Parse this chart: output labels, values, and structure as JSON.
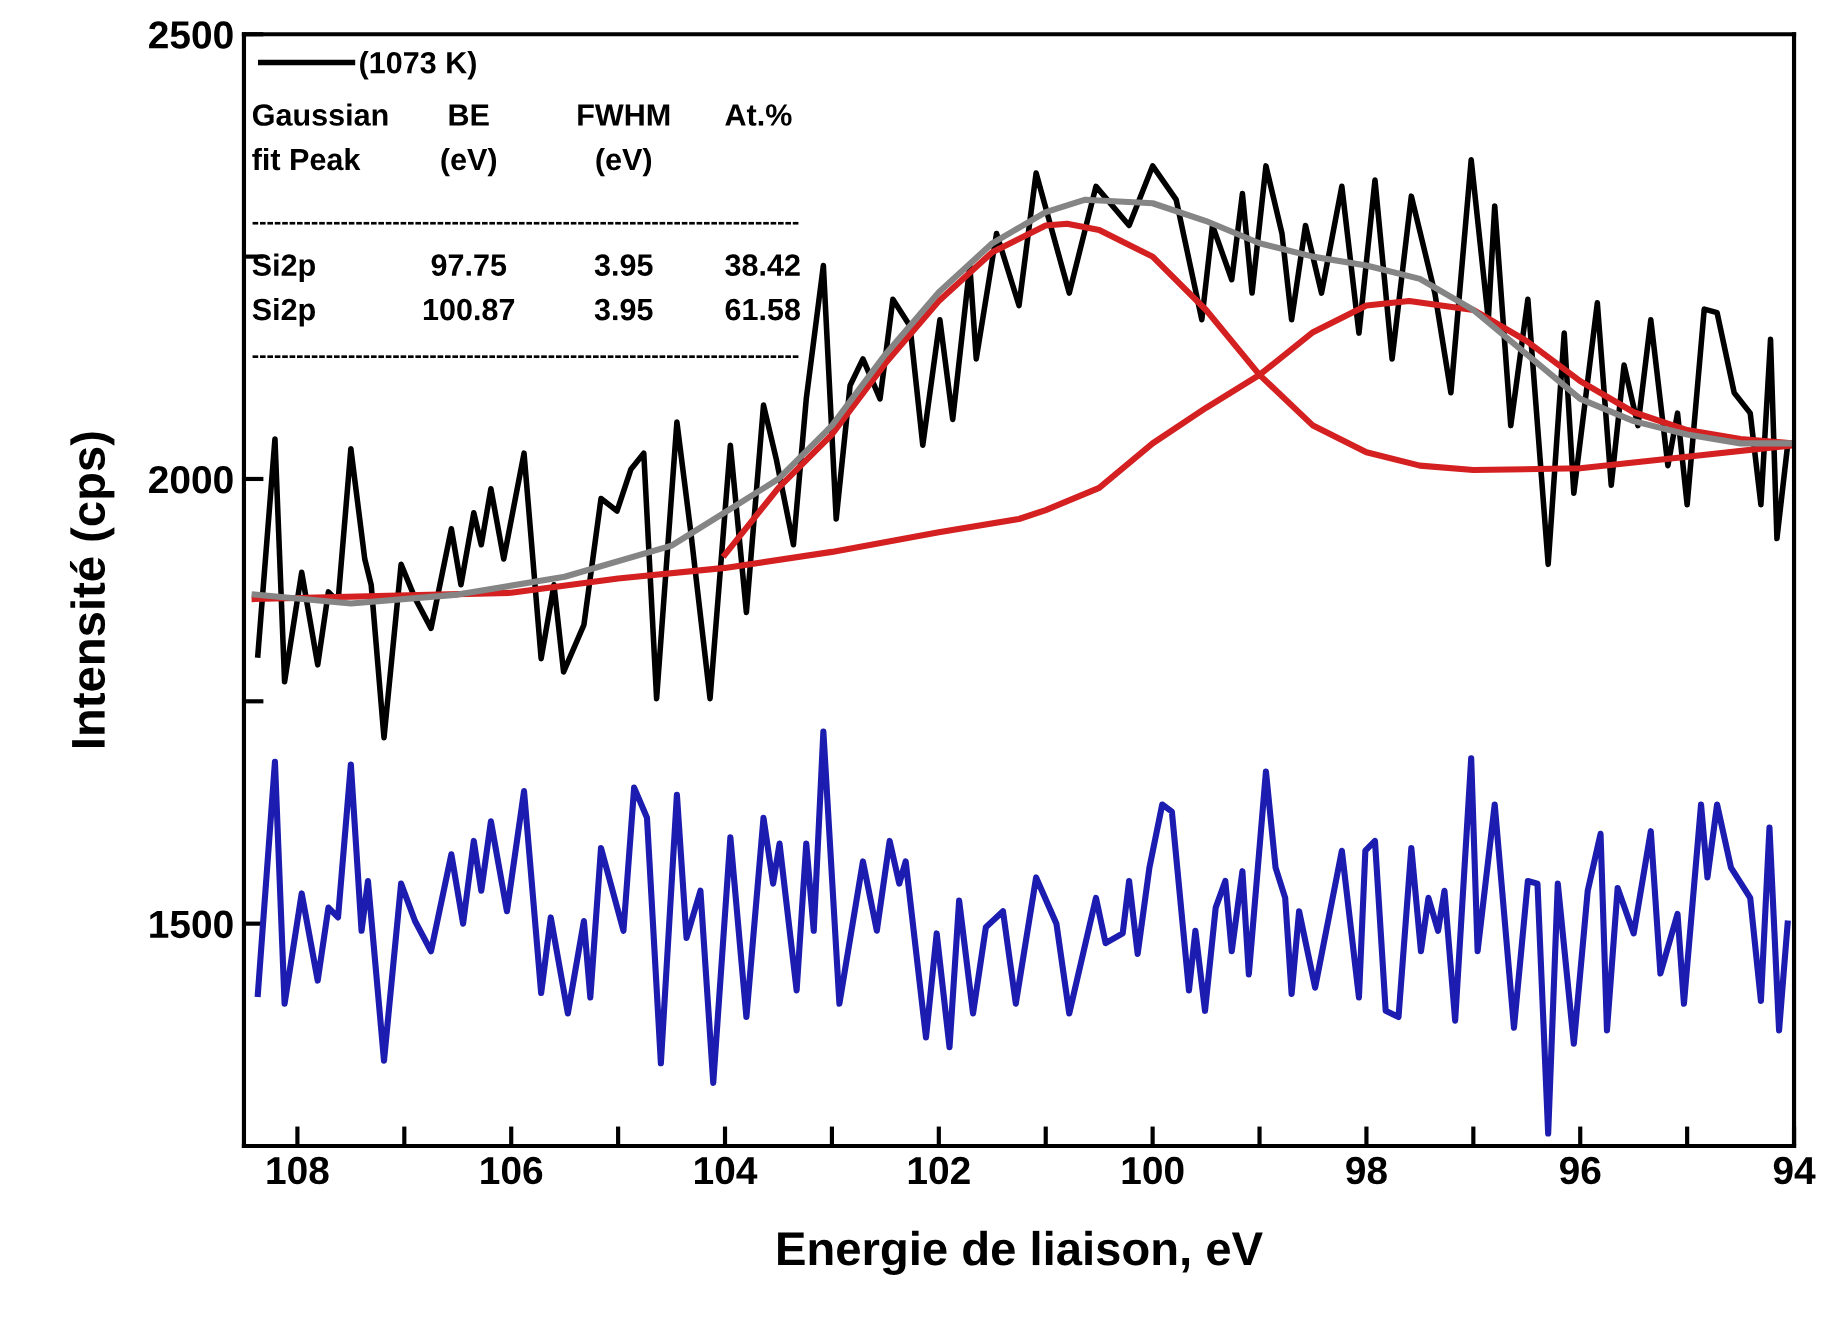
{
  "chart_data": {
    "type": "line",
    "xlabel": "Energie de liaison, eV",
    "ylabel": "Intensité (cps)",
    "xlim": [
      108.5,
      94
    ],
    "ylim": [
      1250,
      2500
    ],
    "xticks": [
      108,
      {
        "value": 107,
        "label": null
      },
      106,
      {
        "value": 105,
        "label": null
      },
      104,
      {
        "value": 103,
        "label": null
      },
      102,
      {
        "value": 101,
        "label": null
      },
      100,
      {
        "value": 99,
        "label": null
      },
      98,
      {
        "value": 97,
        "label": null
      },
      96,
      {
        "value": 95,
        "label": null
      },
      94
    ],
    "yticks": [
      1500,
      {
        "value": 1750,
        "label": null
      },
      2000,
      {
        "value": 2250,
        "label": null
      },
      2500
    ],
    "grid": false,
    "legend": "top left",
    "marker": "none",
    "line_style": "solid",
    "annotations": [
      "Gaussian",
      "BE",
      "FWHM",
      "At.%",
      "fit Peak",
      "(eV)",
      "(eV)",
      "--------------------------------------------------------------------------",
      "Si2p",
      "97.75",
      "3.95",
      "38.42",
      "Si2p",
      "100.87",
      "3.95",
      "61.58",
      "--------------------------------------------------------------------------"
    ],
    "series": [
      {
        "name": "(1073 K)",
        "color": "#000000",
        "x": [
          108.37,
          108.21,
          108.12,
          107.96,
          107.81,
          107.71,
          107.62,
          107.5,
          107.37,
          107.31,
          107.19,
          107.03,
          106.9,
          106.75,
          106.56,
          106.47,
          106.35,
          106.28,
          106.19,
          106.07,
          105.88,
          105.72,
          105.6,
          105.51,
          105.32,
          105.16,
          105.01,
          104.88,
          104.76,
          104.64,
          104.45,
          104.32,
          104.14,
          103.95,
          103.8,
          103.64,
          103.52,
          103.36,
          103.24,
          103.08,
          102.96,
          102.83,
          102.71,
          102.55,
          102.43,
          102.27,
          102.15,
          101.99,
          101.87,
          101.71,
          101.65,
          101.46,
          101.25,
          101.09,
          100.78,
          100.53,
          100.22,
          100.0,
          99.78,
          99.54,
          99.44,
          99.26,
          99.16,
          99.07,
          98.94,
          98.79,
          98.7,
          98.57,
          98.42,
          98.23,
          98.07,
          97.92,
          97.76,
          97.58,
          97.36,
          97.21,
          97.02,
          96.86,
          96.8,
          96.65,
          96.49,
          96.3,
          96.15,
          96.06,
          95.84,
          95.71,
          95.59,
          95.46,
          95.34,
          95.18,
          95.09,
          95.0,
          94.84,
          94.72,
          94.56,
          94.41,
          94.31,
          94.22,
          94.16,
          94.06
        ],
        "values": [
          1802,
          2045,
          1772,
          1895,
          1791,
          1873,
          1862,
          2034,
          1910,
          1881,
          1709,
          1904,
          1866,
          1832,
          1944,
          1881,
          1962,
          1926,
          1989,
          1910,
          2029,
          1798,
          1881,
          1783,
          1836,
          1978,
          1964,
          2011,
          2029,
          1753,
          2064,
          1940,
          1753,
          2038,
          1850,
          2083,
          2022,
          1926,
          2090,
          2240,
          1955,
          2105,
          2135,
          2090,
          2202,
          2172,
          2038,
          2179,
          2067,
          2240,
          2135,
          2276,
          2195,
          2344,
          2209,
          2329,
          2285,
          2352,
          2314,
          2179,
          2285,
          2224,
          2321,
          2209,
          2352,
          2276,
          2179,
          2285,
          2209,
          2329,
          2164,
          2336,
          2135,
          2318,
          2209,
          2097,
          2359,
          2179,
          2307,
          2060,
          2202,
          1904,
          2164,
          1984,
          2198,
          1993,
          2128,
          2060,
          2179,
          2015,
          2074,
          1971,
          2191,
          2187,
          2097,
          2074,
          1971,
          2157,
          1933,
          2038
        ]
      },
      {
        "color": "#d42020",
        "x": [
          104,
          103.5,
          103,
          102.5,
          102,
          101.5,
          101,
          100.8,
          100.5,
          100,
          99.5,
          99,
          98.5,
          98,
          97.5,
          97,
          96,
          95,
          94
        ],
        "values": [
          1915,
          1990,
          2050,
          2130,
          2200,
          2255,
          2285,
          2287,
          2280,
          2250,
          2190,
          2117,
          2060,
          2030,
          2015,
          2010,
          2012,
          2025,
          2038
        ]
      },
      {
        "color": "#d42020",
        "x": [
          108.4,
          106,
          105,
          104,
          103,
          102,
          101.25,
          101,
          100.5,
          100,
          99.5,
          99,
          98.5,
          98,
          97.6,
          97,
          96.5,
          96,
          95.5,
          95,
          94.5,
          94
        ],
        "values": [
          1865,
          1872,
          1888,
          1900,
          1918,
          1940,
          1955,
          1965,
          1990,
          2040,
          2080,
          2117,
          2165,
          2195,
          2200,
          2190,
          2155,
          2110,
          2075,
          2055,
          2045,
          2040
        ]
      },
      {
        "color": "#858585",
        "x": [
          108.4,
          107.5,
          106.5,
          105.5,
          104.5,
          103.5,
          103,
          102.5,
          102,
          101.5,
          101,
          100.63,
          100,
          99.5,
          99,
          98.5,
          98,
          97.5,
          97,
          96.5,
          96,
          95.5,
          95,
          94.5,
          94
        ],
        "values": [
          1870,
          1860,
          1870,
          1890,
          1925,
          2000,
          2060,
          2140,
          2210,
          2265,
          2300,
          2314,
          2310,
          2290,
          2265,
          2250,
          2240,
          2225,
          2190,
          2140,
          2090,
          2065,
          2050,
          2040,
          2040
        ]
      },
      {
        "color": "#1c1cb0",
        "x": [
          108.37,
          108.21,
          108.12,
          107.96,
          107.81,
          107.71,
          107.62,
          107.5,
          107.4,
          107.34,
          107.19,
          107.03,
          106.9,
          106.75,
          106.56,
          106.45,
          106.35,
          106.28,
          106.19,
          106.04,
          105.88,
          105.72,
          105.63,
          105.47,
          105.32,
          105.26,
          105.16,
          104.95,
          104.85,
          104.73,
          104.6,
          104.45,
          104.36,
          104.23,
          104.11,
          103.95,
          103.8,
          103.64,
          103.55,
          103.49,
          103.33,
          103.24,
          103.17,
          103.08,
          102.93,
          102.71,
          102.58,
          102.46,
          102.37,
          102.31,
          102.12,
          102.02,
          101.9,
          101.81,
          101.68,
          101.56,
          101.4,
          101.28,
          101.09,
          100.9,
          100.78,
          100.53,
          100.44,
          100.28,
          100.22,
          100.14,
          100.03,
          99.91,
          99.82,
          99.66,
          99.6,
          99.51,
          99.41,
          99.32,
          99.26,
          99.16,
          99.1,
          98.94,
          98.85,
          98.76,
          98.7,
          98.63,
          98.48,
          98.23,
          98.07,
          98.01,
          97.92,
          97.82,
          97.7,
          97.58,
          97.49,
          97.42,
          97.33,
          97.27,
          97.17,
          97.02,
          96.96,
          96.8,
          96.62,
          96.49,
          96.4,
          96.3,
          96.21,
          96.06,
          95.93,
          95.81,
          95.75,
          95.65,
          95.5,
          95.34,
          95.25,
          95.09,
          95.03,
          94.87,
          94.81,
          94.72,
          94.59,
          94.41,
          94.31,
          94.23,
          94.14,
          94.06
        ],
        "values": [
          1421,
          1682,
          1410,
          1534,
          1436,
          1518,
          1507,
          1679,
          1492,
          1548,
          1346,
          1545,
          1503,
          1469,
          1578,
          1500,
          1593,
          1537,
          1615,
          1514,
          1649,
          1422,
          1507,
          1399,
          1503,
          1417,
          1585,
          1492,
          1653,
          1619,
          1343,
          1645,
          1484,
          1537,
          1321,
          1597,
          1395,
          1619,
          1545,
          1590,
          1425,
          1590,
          1492,
          1716,
          1410,
          1570,
          1492,
          1593,
          1545,
          1570,
          1372,
          1489,
          1361,
          1526,
          1399,
          1496,
          1514,
          1410,
          1552,
          1500,
          1399,
          1529,
          1478,
          1489,
          1548,
          1466,
          1563,
          1634,
          1626,
          1425,
          1492,
          1402,
          1518,
          1548,
          1469,
          1559,
          1443,
          1671,
          1563,
          1529,
          1421,
          1514,
          1428,
          1582,
          1417,
          1582,
          1593,
          1402,
          1395,
          1585,
          1469,
          1529,
          1492,
          1537,
          1391,
          1686,
          1469,
          1634,
          1383,
          1548,
          1545,
          1264,
          1545,
          1365,
          1537,
          1601,
          1380,
          1540,
          1489,
          1604,
          1444,
          1511,
          1410,
          1634,
          1552,
          1634,
          1563,
          1529,
          1413,
          1608,
          1380,
          1500
        ]
      }
    ]
  }
}
